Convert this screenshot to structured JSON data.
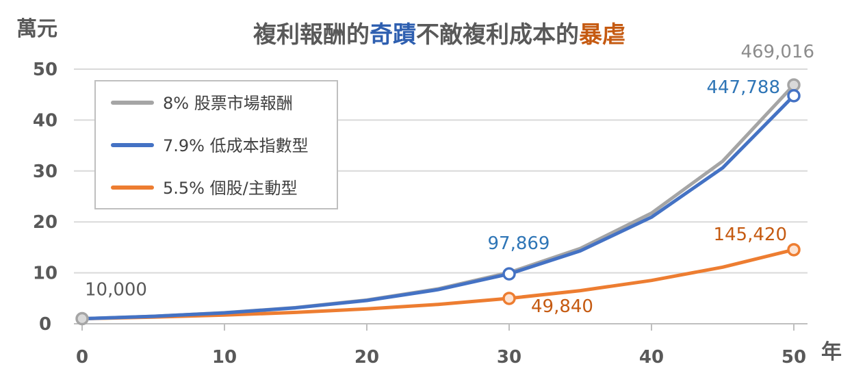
{
  "chart_data": {
    "type": "line",
    "title": {
      "segments": [
        {
          "text": "複利報酬的",
          "color": "#595959"
        },
        {
          "text": "奇蹟",
          "color": "#2e5fb0"
        },
        {
          "text": "不敵複利成本的",
          "color": "#595959"
        },
        {
          "text": "暴虐",
          "color": "#c55a11"
        }
      ]
    },
    "ylabel": "萬元",
    "xlabel": "年",
    "xlim": [
      0,
      50
    ],
    "ylim": [
      0,
      50
    ],
    "x_ticks": [
      "0",
      "10",
      "20",
      "30",
      "40",
      "50"
    ],
    "y_ticks": [
      "0",
      "10",
      "20",
      "30",
      "40",
      "50"
    ],
    "grid": "horizontal",
    "legend_position": "top-left",
    "series": [
      {
        "name": "8% 股票市場報酬",
        "color": "#a5a5a5",
        "x": [
          0,
          5,
          10,
          15,
          20,
          25,
          30,
          35,
          40,
          45,
          50
        ],
        "y": [
          1.0,
          1.47,
          2.16,
          3.17,
          4.66,
          6.85,
          10.06,
          14.79,
          21.72,
          31.92,
          46.9
        ]
      },
      {
        "name": "7.9% 低成本指數型",
        "color": "#4472c4",
        "x": [
          0,
          5,
          10,
          15,
          20,
          25,
          30,
          35,
          40,
          45,
          50
        ],
        "y": [
          1.0,
          1.46,
          2.14,
          3.13,
          4.57,
          6.69,
          9.79,
          14.31,
          20.93,
          30.62,
          44.78
        ]
      },
      {
        "name": "5.5% 個股/主動型",
        "color": "#ed7d31",
        "x": [
          0,
          5,
          10,
          15,
          20,
          25,
          30,
          35,
          40,
          45,
          50
        ],
        "y": [
          1.0,
          1.31,
          1.71,
          2.23,
          2.92,
          3.81,
          4.98,
          6.51,
          8.51,
          11.12,
          14.54
        ]
      }
    ],
    "markers": [
      {
        "series": 0,
        "x": 0,
        "y": 1.0,
        "label": "10,000",
        "label_color": "#595959"
      },
      {
        "series": 0,
        "x": 50,
        "y": 46.9,
        "label": "469,016",
        "label_color": "#8c8c8c"
      },
      {
        "series": 1,
        "x": 30,
        "y": 9.79,
        "label": "97,869",
        "label_color": "#2e75b6"
      },
      {
        "series": 1,
        "x": 50,
        "y": 44.78,
        "label": "447,788",
        "label_color": "#2e75b6"
      },
      {
        "series": 2,
        "x": 30,
        "y": 4.98,
        "label": "49,840",
        "label_color": "#c55a11"
      },
      {
        "series": 2,
        "x": 50,
        "y": 14.54,
        "label": "145,420",
        "label_color": "#c55a11"
      }
    ]
  }
}
